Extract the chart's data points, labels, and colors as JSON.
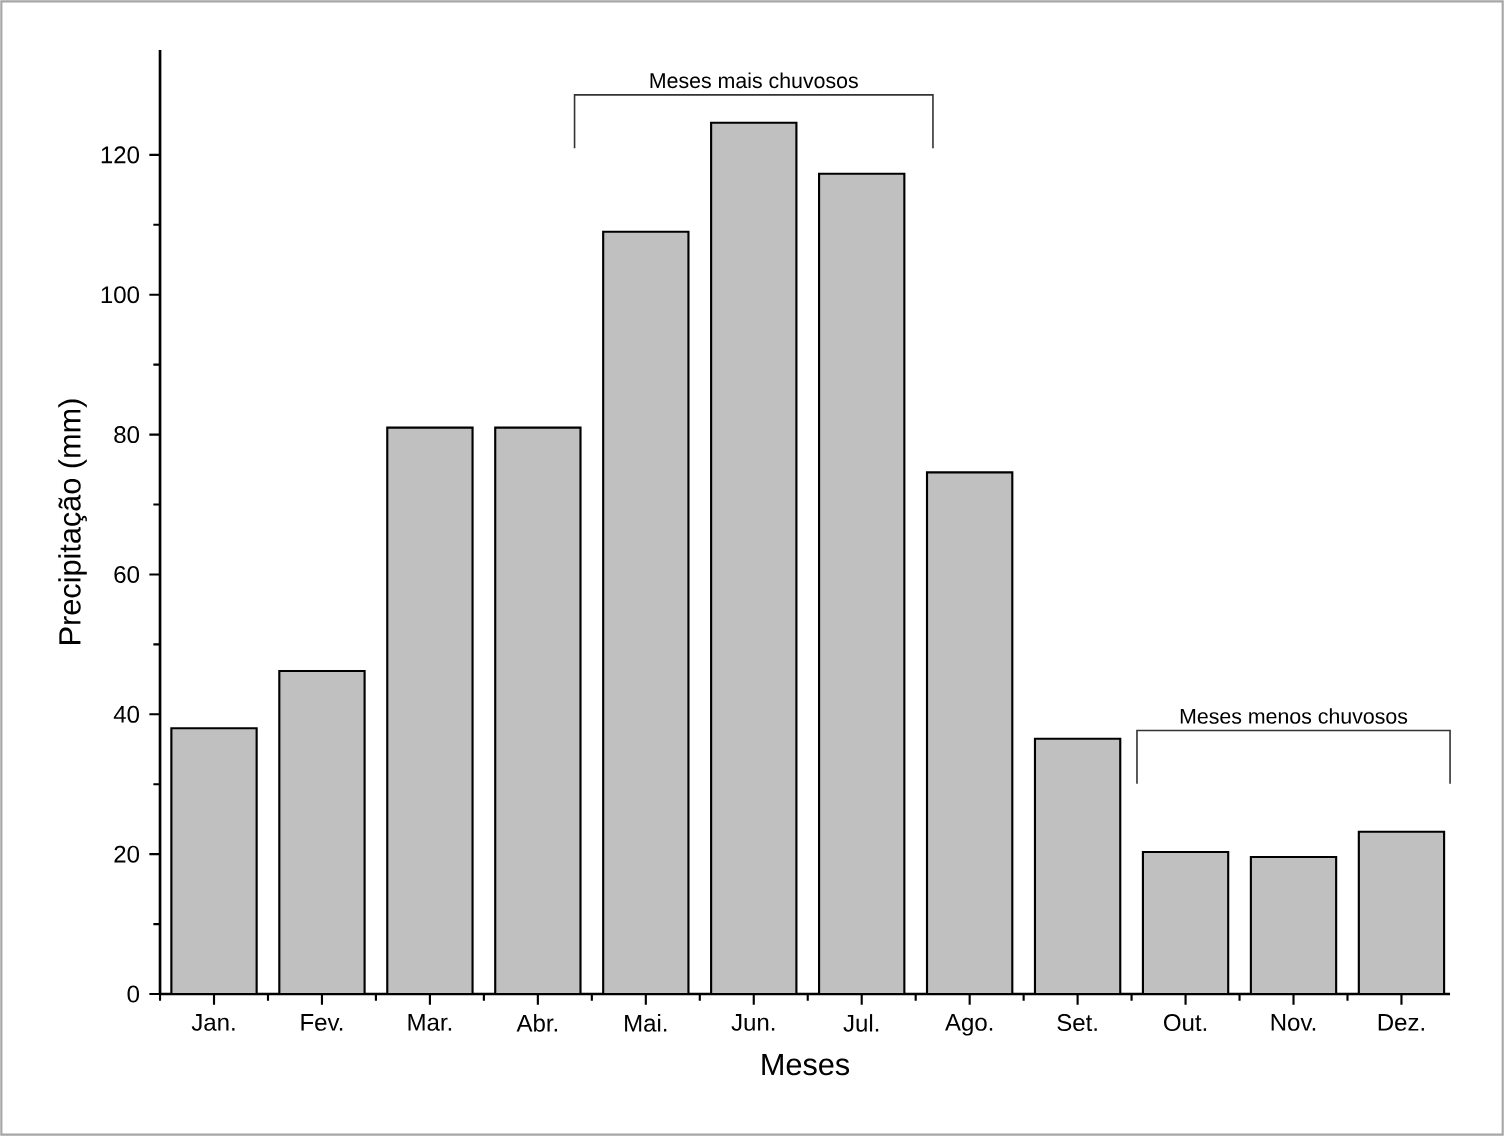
{
  "chart_data": {
    "type": "bar",
    "xlabel": "Meses",
    "ylabel": "Precipitação (mm)",
    "categories": [
      "Jan.",
      "Fev.",
      "Mar.",
      "Abr.",
      "Mai.",
      "Jun.",
      "Jul.",
      "Ago.",
      "Set.",
      "Out.",
      "Nov.",
      "Dez."
    ],
    "values": [
      38,
      46.2,
      81,
      81,
      109,
      124.6,
      117.3,
      74.6,
      36.5,
      20.3,
      19.6,
      23.2
    ],
    "color": "#c0c0c0",
    "ylim": [
      0,
      135
    ],
    "yticks": [
      0,
      20,
      40,
      60,
      80,
      100,
      120
    ],
    "grid": false,
    "annotations": [
      "Meses mais chuvosos",
      "Meses menos chuvosos"
    ]
  }
}
